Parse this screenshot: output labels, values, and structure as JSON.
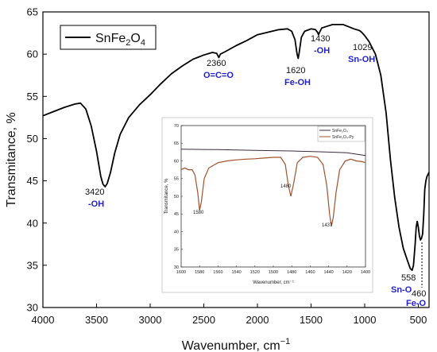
{
  "chart_data": [
    {
      "type": "line",
      "xlabel": "Wavenumber, cm",
      "xlabel_sup": "−1",
      "ylabel": "Transmitance, %",
      "xlim": [
        4000,
        400
      ],
      "ylim": [
        30,
        65
      ],
      "x_ticks": [
        4000,
        3500,
        3000,
        2500,
        2000,
        1500,
        1000,
        500
      ],
      "y_ticks": [
        30,
        35,
        40,
        45,
        50,
        55,
        60,
        65
      ],
      "grid": false,
      "legend_position": "top-left",
      "series": [
        {
          "name": "SnFe2O4",
          "legend_main": "SnFe",
          "legend_sub1": "2",
          "legend_mid": "O",
          "legend_sub2": "4",
          "color": "#000000",
          "points": [
            [
              4000,
              52.7
            ],
            [
              3900,
              53.2
            ],
            [
              3800,
              53.7
            ],
            [
              3700,
              54.1
            ],
            [
              3650,
              54.2
            ],
            [
              3600,
              53.5
            ],
            [
              3550,
              51.5
            ],
            [
              3500,
              48.5
            ],
            [
              3460,
              45.5
            ],
            [
              3440,
              44.6
            ],
            [
              3420,
              44.3
            ],
            [
              3400,
              44.7
            ],
            [
              3370,
              46.0
            ],
            [
              3330,
              48.3
            ],
            [
              3280,
              50.5
            ],
            [
              3200,
              52.5
            ],
            [
              3100,
              54.0
            ],
            [
              3000,
              55.2
            ],
            [
              2900,
              56.5
            ],
            [
              2800,
              57.7
            ],
            [
              2700,
              58.6
            ],
            [
              2600,
              59.4
            ],
            [
              2500,
              59.9
            ],
            [
              2420,
              60.2
            ],
            [
              2380,
              60.1
            ],
            [
              2360,
              59.6
            ],
            [
              2345,
              60.0
            ],
            [
              2300,
              60.3
            ],
            [
              2200,
              61.0
            ],
            [
              2100,
              61.6
            ],
            [
              2000,
              62.3
            ],
            [
              1900,
              62.6
            ],
            [
              1800,
              62.9
            ],
            [
              1720,
              63.0
            ],
            [
              1680,
              62.7
            ],
            [
              1650,
              61.7
            ],
            [
              1630,
              60.0
            ],
            [
              1620,
              59.5
            ],
            [
              1610,
              60.2
            ],
            [
              1590,
              62.0
            ],
            [
              1560,
              62.7
            ],
            [
              1500,
              63.0
            ],
            [
              1460,
              62.9
            ],
            [
              1440,
              62.6
            ],
            [
              1430,
              62.3
            ],
            [
              1420,
              62.6
            ],
            [
              1400,
              63.1
            ],
            [
              1300,
              63.5
            ],
            [
              1200,
              63.5
            ],
            [
              1100,
              63.0
            ],
            [
              1050,
              62.8
            ],
            [
              1029,
              62.6
            ],
            [
              1000,
              62.2
            ],
            [
              960,
              61.5
            ],
            [
              900,
              60.0
            ],
            [
              850,
              57.5
            ],
            [
              800,
              53.0
            ],
            [
              760,
              47.5
            ],
            [
              720,
              43.0
            ],
            [
              680,
              39.5
            ],
            [
              640,
              37.0
            ],
            [
              600,
              35.5
            ],
            [
              575,
              34.6
            ],
            [
              558,
              34.4
            ],
            [
              545,
              35.0
            ],
            [
              530,
              37.5
            ],
            [
              520,
              39.5
            ],
            [
              510,
              40.2
            ],
            [
              500,
              39.5
            ],
            [
              490,
              38.5
            ],
            [
              480,
              38.0
            ],
            [
              470,
              38.2
            ],
            [
              460,
              38.7
            ],
            [
              450,
              41.0
            ],
            [
              440,
              44.0
            ],
            [
              430,
              45.0
            ],
            [
              420,
              45.5
            ],
            [
              400,
              46.0
            ]
          ]
        }
      ],
      "annotations": [
        {
          "number": "3420",
          "group": "-OH"
        },
        {
          "number": "2360",
          "group": "O=C=O"
        },
        {
          "number": "1620",
          "group": "Fe-OH"
        },
        {
          "number": "1430",
          "group": "-OH"
        },
        {
          "number": "1029",
          "group": "Sn-OH"
        },
        {
          "number": "558",
          "group": "Sn-O"
        },
        {
          "number": "460",
          "group": "Fe-O"
        }
      ]
    },
    {
      "type": "line",
      "xlabel": "Wavenumber, cm⁻¹",
      "ylabel": "Transmitance, %",
      "xlim": [
        1600,
        1400
      ],
      "ylim": [
        30,
        70
      ],
      "x_ticks": [
        1600,
        1580,
        1560,
        1540,
        1520,
        1500,
        1480,
        1460,
        1440,
        1420,
        1400
      ],
      "y_ticks": [
        30,
        35,
        40,
        45,
        50,
        55,
        60,
        65,
        70
      ],
      "grid": false,
      "legend_position": "top-right",
      "series": [
        {
          "name": "SnFe₂O₄",
          "color": "#3a2d3a",
          "points": [
            [
              1600,
              63.3
            ],
            [
              1560,
              63.2
            ],
            [
              1520,
              63.0
            ],
            [
              1480,
              62.8
            ],
            [
              1440,
              62.5
            ],
            [
              1420,
              62.3
            ],
            [
              1400,
              61.5
            ]
          ]
        },
        {
          "name": "SnFe₂O₄-Py",
          "color": "#a0522d",
          "points": [
            [
              1600,
              57.5
            ],
            [
              1596,
              58.0
            ],
            [
              1592,
              57.5
            ],
            [
              1588,
              57.5
            ],
            [
              1585,
              56.0
            ],
            [
              1582,
              51.0
            ],
            [
              1580,
              46.0
            ],
            [
              1578,
              48.5
            ],
            [
              1575,
              55.0
            ],
            [
              1570,
              58.0
            ],
            [
              1560,
              59.5
            ],
            [
              1550,
              60.0
            ],
            [
              1540,
              60.3
            ],
            [
              1530,
              60.5
            ],
            [
              1520,
              60.6
            ],
            [
              1510,
              60.8
            ],
            [
              1500,
              61.0
            ],
            [
              1492,
              61.0
            ],
            [
              1487,
              59.0
            ],
            [
              1484,
              53.5
            ],
            [
              1481,
              50.0
            ],
            [
              1478,
              53.5
            ],
            [
              1474,
              59.5
            ],
            [
              1468,
              61.0
            ],
            [
              1460,
              61.3
            ],
            [
              1452,
              61.0
            ],
            [
              1446,
              59.0
            ],
            [
              1442,
              53.0
            ],
            [
              1439,
              45.0
            ],
            [
              1437,
              41.5
            ],
            [
              1435,
              44.0
            ],
            [
              1432,
              51.0
            ],
            [
              1428,
              57.5
            ],
            [
              1422,
              60.0
            ],
            [
              1416,
              60.5
            ],
            [
              1410,
              60.0
            ],
            [
              1404,
              59.8
            ],
            [
              1400,
              59.5
            ]
          ]
        }
      ],
      "annotations": [
        {
          "number": "1580"
        },
        {
          "number": "1480"
        },
        {
          "number": "1437"
        }
      ]
    }
  ]
}
